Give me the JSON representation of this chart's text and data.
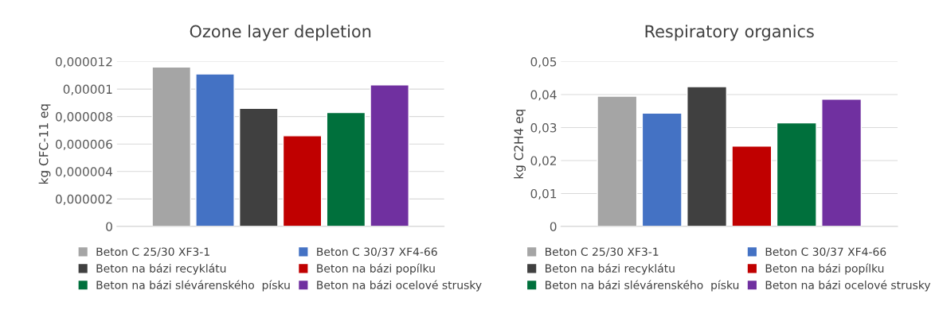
{
  "chart_data": [
    {
      "type": "bar",
      "title": "Ozone layer depletion",
      "ylabel": "kg CFC-11 eq",
      "categories": [
        null
      ],
      "series": [
        {
          "name": "Beton C 25/30 XF3-1",
          "color": "#a5a5a5",
          "values": [
            1.16e-05
          ]
        },
        {
          "name": "Beton C 30/37 XF4-66",
          "color": "#4472c4",
          "values": [
            1.11e-05
          ]
        },
        {
          "name": "Beton na bázi recyklátu",
          "color": "#404040",
          "values": [
            8.6e-06
          ]
        },
        {
          "name": "Beton na bázi popílku",
          "color": "#c00000",
          "values": [
            6.6e-06
          ]
        },
        {
          "name": "Beton na bázi slévárenského  písku",
          "color": "#00703c",
          "values": [
            8.3e-06
          ]
        },
        {
          "name": "Beton na bázi ocelové strusky",
          "color": "#7030a0",
          "values": [
            1.03e-05
          ]
        }
      ],
      "ylim": [
        0,
        1.2e-05
      ],
      "yticks": [
        {
          "value": 0,
          "label": "0"
        },
        {
          "value": 2e-06,
          "label": "0,000002"
        },
        {
          "value": 4e-06,
          "label": "0,000004"
        },
        {
          "value": 6e-06,
          "label": "0,000006"
        },
        {
          "value": 8e-06,
          "label": "0,000008"
        },
        {
          "value": 1e-05,
          "label": "0,00001"
        },
        {
          "value": 1.2e-05,
          "label": "0,000012"
        }
      ],
      "grid": "y",
      "legend": "bottom"
    },
    {
      "type": "bar",
      "title": "Respiratory organics",
      "ylabel": "kg C2H4 eq",
      "categories": [
        null
      ],
      "series": [
        {
          "name": "Beton C 25/30 XF3-1",
          "color": "#a5a5a5",
          "values": [
            0.0395
          ]
        },
        {
          "name": "Beton C 30/37 XF4-66",
          "color": "#4472c4",
          "values": [
            0.0344
          ]
        },
        {
          "name": "Beton na bázi recyklátu",
          "color": "#404040",
          "values": [
            0.0424
          ]
        },
        {
          "name": "Beton na bázi popílku",
          "color": "#c00000",
          "values": [
            0.0244
          ]
        },
        {
          "name": "Beton na bázi slévárenského  písku",
          "color": "#00703c",
          "values": [
            0.0314
          ]
        },
        {
          "name": "Beton na bázi ocelové strusky",
          "color": "#7030a0",
          "values": [
            0.0386
          ]
        }
      ],
      "ylim": [
        0,
        0.05
      ],
      "yticks": [
        {
          "value": 0,
          "label": "0"
        },
        {
          "value": 0.01,
          "label": "0,01"
        },
        {
          "value": 0.02,
          "label": "0,02"
        },
        {
          "value": 0.03,
          "label": "0,03"
        },
        {
          "value": 0.04,
          "label": "0,04"
        },
        {
          "value": 0.05,
          "label": "0,05"
        }
      ],
      "grid": "y",
      "legend": "bottom"
    }
  ]
}
